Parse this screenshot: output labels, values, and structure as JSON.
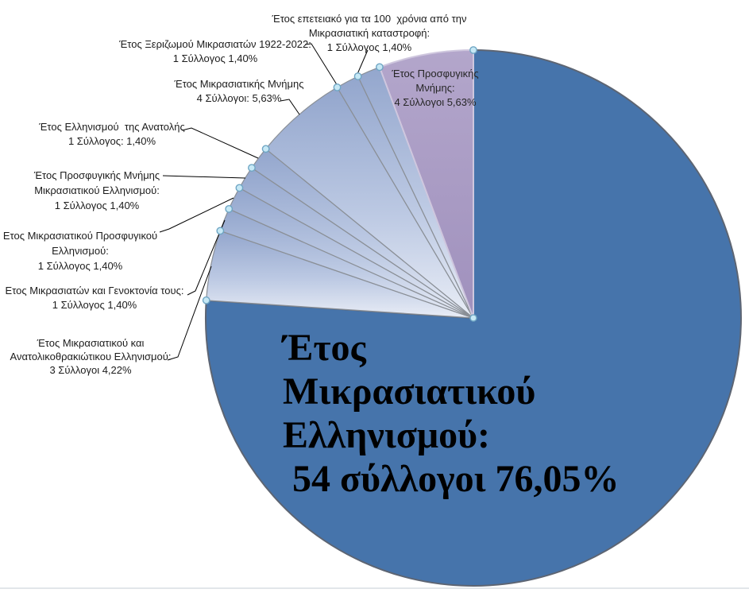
{
  "chart_data": {
    "type": "pie",
    "title": "",
    "legend": "none",
    "unit": "Σύλλογοι",
    "slices": [
      {
        "name": "Έτος Μικρασιατικού Ελληνισμού",
        "syllogoi": 54,
        "pct": 76.05,
        "pct_label": "76,05%",
        "color": "#4674ab",
        "label_placement": "inside-main",
        "label_lines": [
          "Έτος",
          "Μικρασιατικού",
          "Ελληνισμού:",
          " 54 σύλλογοι 76,05%"
        ]
      },
      {
        "name": "Έτος Μικρασιατικού και Ανατολικοθρακιώτικου Ελληνισμού",
        "syllogoi": 3,
        "pct": 4.22,
        "pct_label": "4,22%",
        "color": "gradient-blue",
        "label_placement": "callout",
        "label_lines": [
          "Έτος Μικρασιατικού και",
          "Ανατολικοθρακιώτικου Ελληνισμού:",
          "3 Σύλλογοι 4,22%"
        ]
      },
      {
        "name": "Ετος Μικρασιατών και Γενοκτονία τους",
        "syllogoi": 1,
        "pct": 1.4,
        "pct_label": "1,40%",
        "color": "gradient-blue",
        "label_placement": "callout",
        "label_lines": [
          "Ετος Μικρασιατών και Γενοκτονία τους:",
          "1 Σύλλογος 1,40%"
        ]
      },
      {
        "name": "Ετος Μικρασιατικού Προσφυγικού Ελληνισμού",
        "syllogoi": 1,
        "pct": 1.4,
        "pct_label": "1,40%",
        "color": "gradient-blue",
        "label_placement": "callout",
        "label_lines": [
          "Ετος Μικρασιατικού Προσφυγικού",
          "Ελληνισμού:",
          "1 Σύλλογος 1,40%"
        ]
      },
      {
        "name": "Έτος Προσφυγικής Μνήμης Μικρασιατικού Ελληνισμού",
        "syllogoi": 1,
        "pct": 1.4,
        "pct_label": "1,40%",
        "color": "gradient-blue",
        "label_placement": "callout",
        "label_lines": [
          "Έτος Προσφυγικής Μνήμης",
          "Μικρασιατικού Ελληνισμού:",
          "1 Σύλλογος 1,40%"
        ]
      },
      {
        "name": "Έτος Ελληνισμού της Ανατολής",
        "syllogoi": 1,
        "pct": 1.4,
        "pct_label": "1,40%",
        "color": "gradient-blue",
        "label_placement": "callout",
        "label_lines": [
          "Έτος Ελληνισμού  της Ανατολής",
          "1 Σύλλογος: 1,40%"
        ]
      },
      {
        "name": "Έτος Μικρασιατικής Μνήμης",
        "syllogoi": 4,
        "pct": 5.63,
        "pct_label": "5,63%",
        "color": "gradient-blue",
        "label_placement": "callout",
        "label_lines": [
          "Έτος Μικρασιατικής Μνήμης",
          "4 Σύλλογοι: 5,63%"
        ]
      },
      {
        "name": "Έτος Ξεριζωμού Μικρασιατών 1922-2022",
        "syllogoi": 1,
        "pct": 1.4,
        "pct_label": "1,40%",
        "color": "gradient-blue",
        "label_placement": "callout",
        "label_lines": [
          "Έτος Ξεριζωμού Μικρασιατών 1922-2022:",
          "1 Σύλλογος 1,40%"
        ]
      },
      {
        "name": "Έτος επετειακό για τα 100 χρόνια από την Μικρασιατική καταστροφή",
        "syllogoi": 1,
        "pct": 1.4,
        "pct_label": "1,40%",
        "color": "gradient-blue",
        "label_placement": "callout",
        "label_lines": [
          "Έτος επετειακό για τα 100  χρόνια από την",
          "Μικρασιατική καταστροφή:",
          "1 Σύλλογος 1,40%"
        ]
      },
      {
        "name": "Έτος Προσφυγικής Μνήμης",
        "syllogoi": 4,
        "pct": 5.63,
        "pct_label": "5,63%",
        "color": "#a89ac3",
        "label_placement": "inside-slice",
        "label_lines": [
          "Έτος Προσφυγικής",
          "Μνήμης:",
          "4 Σύλλογοι 5,63%"
        ]
      }
    ],
    "colors": {
      "main_slice": "#4674ab",
      "main_slice_border": "#5d6573",
      "accent_slice": "#a89ac3",
      "accent_slice_border": "#cfc7de",
      "thin_slice_top": "#93a6cd",
      "thin_slice_bottom": "#e9edf6",
      "thin_slice_border": "#8a8f96",
      "leader_line": "#000000",
      "handle_fill": "#c6e8f5",
      "handle_stroke": "#6fa6c4"
    }
  }
}
